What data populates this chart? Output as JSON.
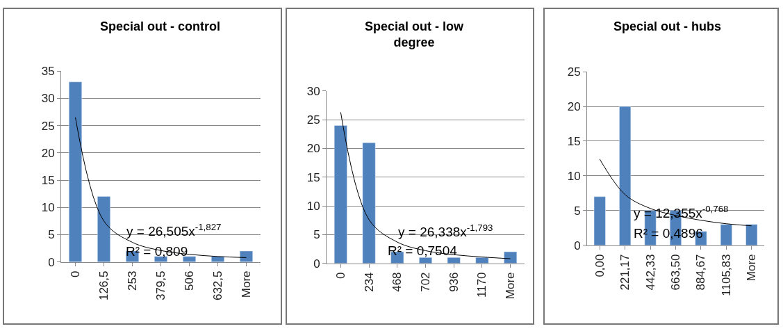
{
  "chart_data": [
    {
      "type": "bar",
      "title": "Special out - control",
      "categories": [
        "0",
        "126,5",
        "253",
        "379,5",
        "506",
        "632,5",
        "More"
      ],
      "ylim": [
        0,
        35
      ],
      "yticks": [
        0,
        5,
        10,
        15,
        20,
        25,
        30,
        35
      ],
      "grid": "y",
      "series": [
        {
          "color": "#4f81bd",
          "values": [
            33,
            12,
            2,
            1,
            1,
            1,
            2
          ]
        },
        {
          "type": "line",
          "color": "#000000",
          "values": [
            26.5,
            7.5,
            3.6,
            2.1,
            1.4,
            1.0,
            0.8
          ]
        }
      ],
      "annotations": [
        "y = 26,505x$^{-1,827}$",
        "R² = 0,809"
      ]
    },
    {
      "type": "bar",
      "title": "Special out - low degree",
      "categories": [
        "0",
        "234",
        "468",
        "702",
        "936",
        "1170",
        "More"
      ],
      "ylim": [
        0,
        30
      ],
      "yticks": [
        0,
        5,
        10,
        15,
        20,
        25,
        30
      ],
      "grid": "y",
      "series": [
        {
          "color": "#4f81bd",
          "values": [
            24,
            21,
            2,
            1,
            1,
            1,
            2
          ]
        },
        {
          "type": "line",
          "color": "#000000",
          "values": [
            26.3,
            7.6,
            3.7,
            2.2,
            1.5,
            1.1,
            0.8
          ]
        }
      ],
      "annotations": [
        "y = 26,338x$^{-1,793}$",
        "R² = 0,7504"
      ]
    },
    {
      "type": "bar",
      "title": "Special out - hubs",
      "categories": [
        "0,00",
        "221,17",
        "442,33",
        "663,50",
        "884,67",
        "1105,83",
        "More"
      ],
      "ylim": [
        0,
        25
      ],
      "yticks": [
        0,
        5,
        10,
        15,
        20,
        25
      ],
      "grid": "y",
      "series": [
        {
          "color": "#4f81bd",
          "values": [
            7,
            20,
            5,
            5,
            2,
            3,
            3
          ]
        },
        {
          "type": "line",
          "color": "#000000",
          "values": [
            12.4,
            7.3,
            5.3,
            4.3,
            3.6,
            3.1,
            2.8
          ]
        }
      ],
      "annotations": [
        "y = 12,355x$^{-0,768}$",
        "R² = 0,4896"
      ]
    }
  ]
}
